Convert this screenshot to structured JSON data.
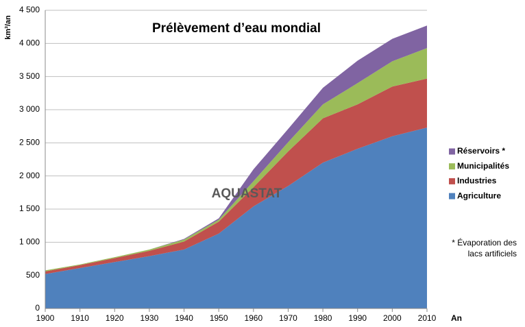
{
  "chart_data": {
    "type": "stacked-area",
    "title": "Prélèvement d’eau mondial",
    "y_label": "km³/an",
    "x_label": "An",
    "watermark": "AQUASTAT",
    "note": [
      "* Évaporation des",
      "lacs artificiels"
    ],
    "x": [
      1900,
      1910,
      1920,
      1930,
      1940,
      1950,
      1960,
      1970,
      1980,
      1990,
      2000,
      2010
    ],
    "xlim": [
      1900,
      2010
    ],
    "xticks": [
      1900,
      1910,
      1920,
      1930,
      1940,
      1950,
      1960,
      1970,
      1980,
      1990,
      2000,
      2010
    ],
    "ylim": [
      0,
      4500
    ],
    "yticks": [
      0,
      500,
      {
        "value": 1000,
        "label": "1 000"
      },
      {
        "value": 1500,
        "label": "1 500"
      },
      {
        "value": 2000,
        "label": "2 000"
      },
      {
        "value": 2500,
        "label": "2 500"
      },
      {
        "value": 3000,
        "label": "3 000"
      },
      {
        "value": 3500,
        "label": "3 500"
      },
      {
        "value": 4000,
        "label": "4 000"
      },
      {
        "value": 4500,
        "label": "4 500"
      }
    ],
    "grid": true,
    "legend": "right",
    "series": [
      {
        "name": "Agriculture",
        "color": "#4f81bd",
        "values": [
          520,
          610,
          700,
          790,
          890,
          1130,
          1540,
          1850,
          2200,
          2410,
          2600,
          2730
        ]
      },
      {
        "name": "Industries",
        "color": "#c0504d",
        "values": [
          40,
          45,
          60,
          80,
          120,
          180,
          290,
          520,
          670,
          670,
          750,
          740
        ]
      },
      {
        "name": "Municipalités",
        "color": "#9bbb59",
        "values": [
          15,
          10,
          15,
          20,
          30,
          30,
          90,
          140,
          210,
          320,
          380,
          460
        ]
      },
      {
        "name": "Réservoirs *",
        "color": "#8064a2",
        "values": [
          0,
          0,
          0,
          0,
          10,
          20,
          180,
          200,
          250,
          340,
          340,
          340
        ]
      }
    ]
  }
}
